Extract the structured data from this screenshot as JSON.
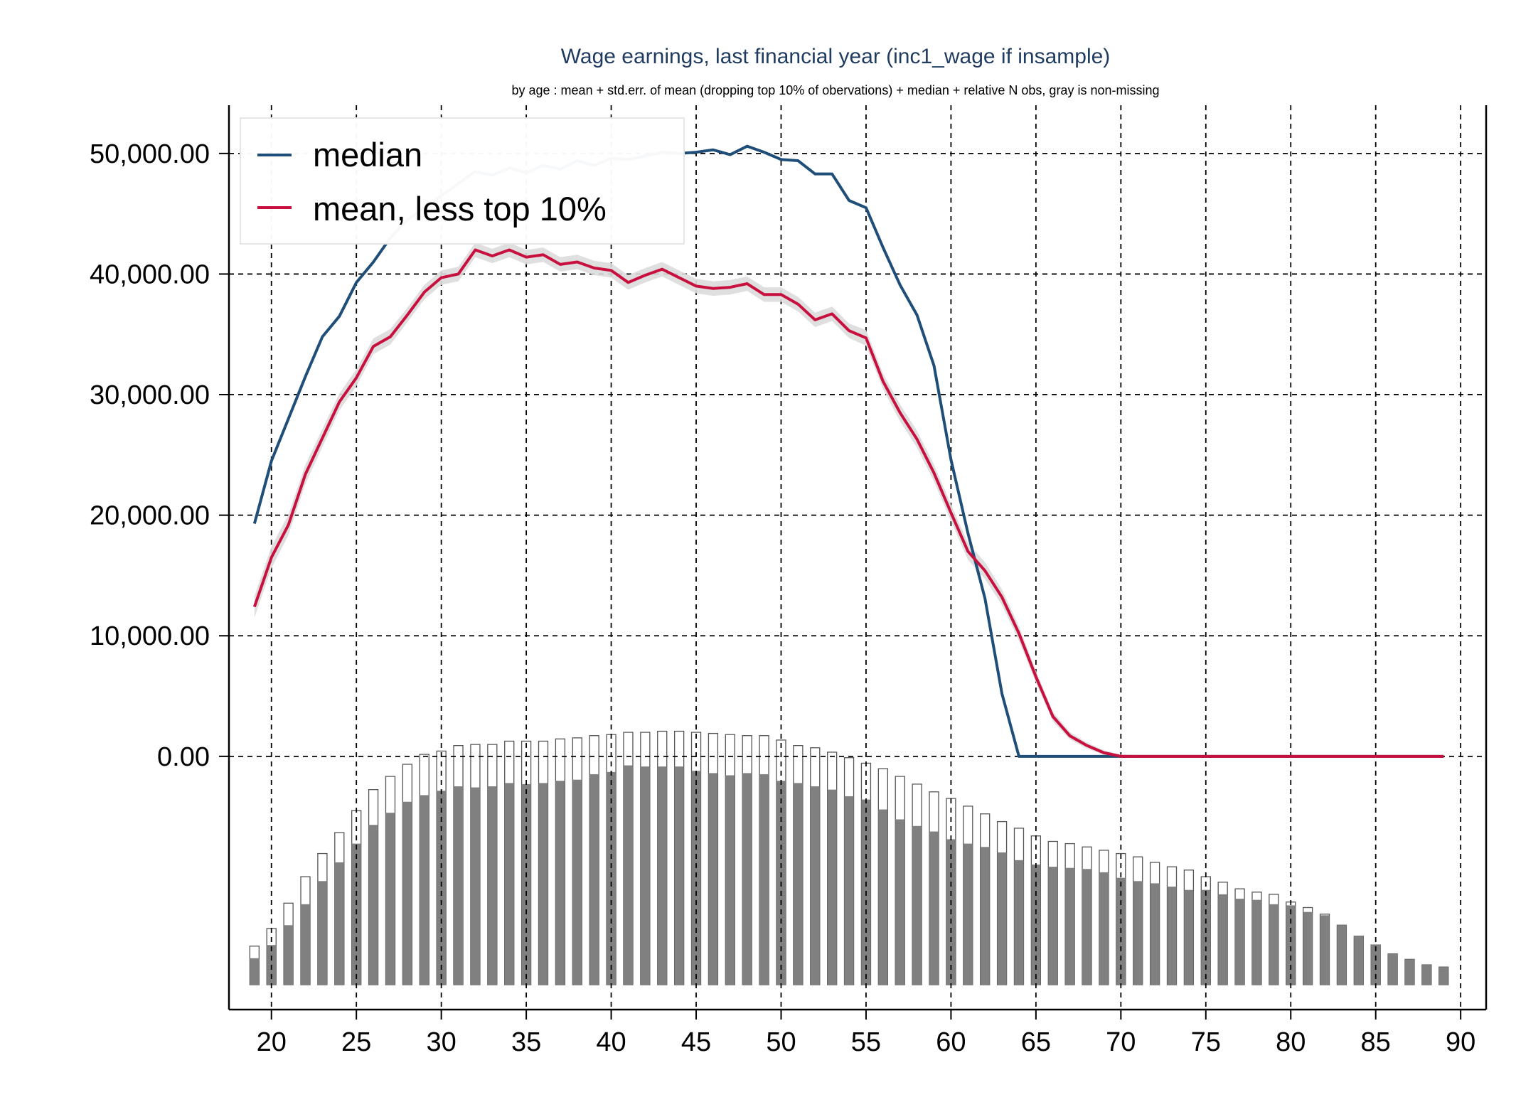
{
  "chart_data": {
    "type": "line",
    "title": "Wage earnings, last financial year (inc1_wage if insample)",
    "subtitle": "by age : mean + std.err. of mean (dropping top 10% of obervations) + median + relative N obs, gray is non-missing",
    "xlabel": "",
    "ylabel": "",
    "xlim": [
      17.5,
      91.5
    ],
    "ylim": [
      -21000,
      54000
    ],
    "x_ticks": [
      20,
      25,
      30,
      35,
      40,
      45,
      50,
      55,
      60,
      65,
      70,
      75,
      80,
      85,
      90
    ],
    "y_ticks": [
      0,
      10000,
      20000,
      30000,
      40000,
      50000
    ],
    "y_tick_labels": [
      "0.00",
      "10,000.00",
      "20,000.00",
      "30,000.00",
      "40,000.00",
      "50,000.00"
    ],
    "grid": true,
    "legend_position": "top-left",
    "x": [
      19,
      20,
      21,
      22,
      23,
      24,
      25,
      26,
      27,
      28,
      29,
      30,
      31,
      32,
      33,
      34,
      35,
      36,
      37,
      38,
      39,
      40,
      41,
      42,
      43,
      44,
      45,
      46,
      47,
      48,
      49,
      50,
      51,
      52,
      53,
      54,
      55,
      56,
      57,
      58,
      59,
      60,
      61,
      62,
      63,
      64,
      65,
      66,
      67,
      68,
      69,
      70,
      71,
      72,
      73,
      74,
      75,
      76,
      77,
      78,
      79,
      80,
      81,
      82,
      83,
      84,
      85,
      86,
      87,
      88,
      89
    ],
    "series": [
      {
        "name": "median",
        "color": "#1f4e79",
        "values": [
          19300,
          24500,
          28000,
          31500,
          34800,
          36500,
          39300,
          41000,
          43000,
          44500,
          45500,
          46500,
          47500,
          48500,
          48200,
          48800,
          48400,
          49000,
          48700,
          49400,
          49000,
          49600,
          49500,
          49800,
          50100,
          50000,
          50100,
          50300,
          49900,
          50600,
          50100,
          49500,
          49400,
          48300,
          48300,
          46100,
          45500,
          42200,
          39100,
          36600,
          32400,
          24600,
          18500,
          13100,
          5200,
          0,
          0,
          0,
          0,
          0,
          0,
          0,
          0,
          0,
          0,
          0,
          0,
          0,
          0,
          0,
          0,
          0,
          0,
          0,
          0,
          0,
          0,
          0,
          0,
          0,
          0
        ]
      },
      {
        "name": "mean, less top 10%",
        "color": "#c8103e",
        "band_color": "#dcdcdc",
        "values": [
          12400,
          16500,
          19200,
          23400,
          26400,
          29400,
          31400,
          34000,
          34800,
          36600,
          38500,
          39700,
          40000,
          42000,
          41500,
          42000,
          41400,
          41600,
          40800,
          41000,
          40500,
          40300,
          39300,
          39900,
          40400,
          39700,
          39000,
          38800,
          38900,
          39200,
          38300,
          38300,
          37500,
          36200,
          36700,
          35300,
          34700,
          31100,
          28500,
          26300,
          23500,
          20200,
          17000,
          15400,
          13200,
          10200,
          6600,
          3300,
          1700,
          900,
          300,
          0,
          0,
          0,
          0,
          0,
          0,
          0,
          0,
          0,
          0,
          0,
          0,
          0,
          0,
          0,
          0,
          0,
          0,
          0,
          0
        ],
        "std_err": [
          900,
          900,
          850,
          800,
          750,
          700,
          700,
          650,
          650,
          600,
          600,
          600,
          600,
          600,
          600,
          600,
          600,
          600,
          600,
          600,
          600,
          600,
          600,
          600,
          600,
          600,
          600,
          600,
          600,
          600,
          600,
          600,
          600,
          600,
          600,
          600,
          650,
          650,
          700,
          700,
          700,
          700,
          700,
          700,
          650,
          600,
          500,
          400,
          300,
          250,
          200,
          150,
          100,
          100,
          100,
          100,
          100,
          100,
          100,
          100,
          100,
          100,
          100,
          100,
          100,
          100,
          100,
          100,
          100,
          100,
          100
        ]
      }
    ],
    "bars": {
      "description_key": "relative N obs, gray is non-missing",
      "total_color": "#ffffff",
      "nonmissing_color": "#808080",
      "total": [
        3.5,
        5.1,
        7.4,
        9.8,
        11.9,
        13.8,
        15.8,
        17.7,
        18.9,
        20.0,
        20.9,
        21.2,
        21.7,
        21.8,
        21.8,
        22.1,
        22.1,
        22.1,
        22.3,
        22.4,
        22.6,
        22.7,
        22.9,
        22.9,
        23.0,
        23.0,
        22.9,
        22.8,
        22.7,
        22.6,
        22.6,
        22.2,
        21.7,
        21.5,
        21.1,
        20.6,
        20.1,
        19.6,
        18.9,
        18.2,
        17.5,
        16.9,
        16.2,
        15.5,
        14.8,
        14.2,
        13.5,
        13.0,
        12.8,
        12.5,
        12.2,
        11.9,
        11.6,
        11.1,
        10.7,
        10.4,
        9.8,
        9.3,
        8.7,
        8.4,
        8.2,
        7.5,
        7.0,
        6.4,
        5.4,
        4.4,
        3.6,
        2.8,
        2.3,
        1.8,
        1.6
      ],
      "nonmissing": [
        2.4,
        3.6,
        5.4,
        7.3,
        9.4,
        11.1,
        12.8,
        14.5,
        15.6,
        16.6,
        17.2,
        17.6,
        18.0,
        17.9,
        18.0,
        18.3,
        18.2,
        18.3,
        18.5,
        18.6,
        19.1,
        19.3,
        19.9,
        19.8,
        19.8,
        19.8,
        19.4,
        19.2,
        19.0,
        19.2,
        19.1,
        18.5,
        18.3,
        18.0,
        17.7,
        17.1,
        16.8,
        15.9,
        15.0,
        14.4,
        13.9,
        13.2,
        12.8,
        12.5,
        12.0,
        11.3,
        10.9,
        10.7,
        10.6,
        10.5,
        10.2,
        9.7,
        9.4,
        9.2,
        8.9,
        8.6,
        8.6,
        8.2,
        7.8,
        7.7,
        7.3,
        7.2,
        6.6,
        6.3,
        5.4,
        4.4,
        3.6,
        2.8,
        2.3,
        1.8,
        1.6
      ]
    }
  }
}
